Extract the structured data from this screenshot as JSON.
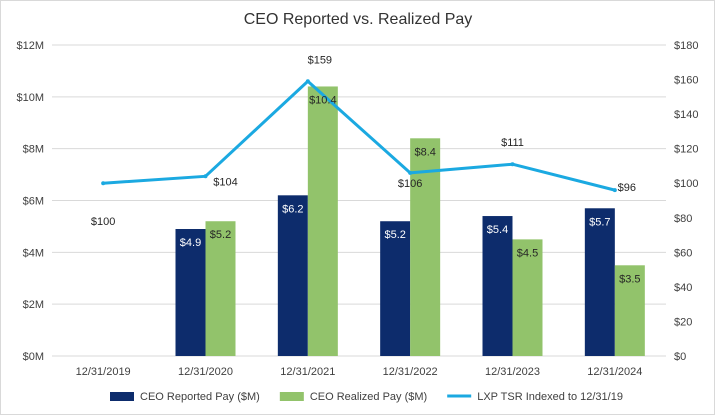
{
  "chart_data": {
    "type": "bar",
    "title": "CEO Reported vs. Realized Pay",
    "categories": [
      "12/31/2019",
      "12/31/2020",
      "12/31/2021",
      "12/31/2022",
      "12/31/2023",
      "12/31/2024"
    ],
    "series": [
      {
        "name": "CEO Reported Pay ($M)",
        "kind": "bar",
        "axis": "left",
        "color": "#0d2c6c",
        "values": [
          null,
          4.9,
          6.2,
          5.2,
          5.4,
          5.7
        ],
        "labels": [
          "",
          "$4.9",
          "$6.2",
          "$5.2",
          "$5.4",
          "$5.7"
        ]
      },
      {
        "name": "CEO Realized Pay ($M)",
        "kind": "bar",
        "axis": "left",
        "color": "#92c36b",
        "values": [
          null,
          5.2,
          10.4,
          8.4,
          4.5,
          3.5
        ],
        "labels": [
          "",
          "$5.2",
          "$10.4",
          "$8.4",
          "$4.5",
          "$3.5"
        ]
      },
      {
        "name": "LXP TSR Indexed to 12/31/19",
        "kind": "line",
        "axis": "right",
        "color": "#1ba9e1",
        "values": [
          100,
          104,
          159,
          106,
          111,
          96
        ],
        "labels": [
          "$100",
          "$104",
          "$159",
          "$106",
          "$111",
          "$96"
        ]
      }
    ],
    "y_left": {
      "min": 0,
      "max": 12,
      "ticks": [
        0,
        2,
        4,
        6,
        8,
        10,
        12
      ],
      "tick_labels": [
        "$0M",
        "$2M",
        "$4M",
        "$6M",
        "$8M",
        "$10M",
        "$12M"
      ]
    },
    "y_right": {
      "min": 0,
      "max": 180,
      "ticks": [
        0,
        20,
        40,
        60,
        80,
        100,
        120,
        140,
        160,
        180
      ],
      "tick_labels": [
        "$0",
        "$20",
        "$40",
        "$60",
        "$80",
        "$100",
        "$120",
        "$140",
        "$160",
        "$180"
      ]
    },
    "grid": true,
    "legend": "bottom"
  }
}
